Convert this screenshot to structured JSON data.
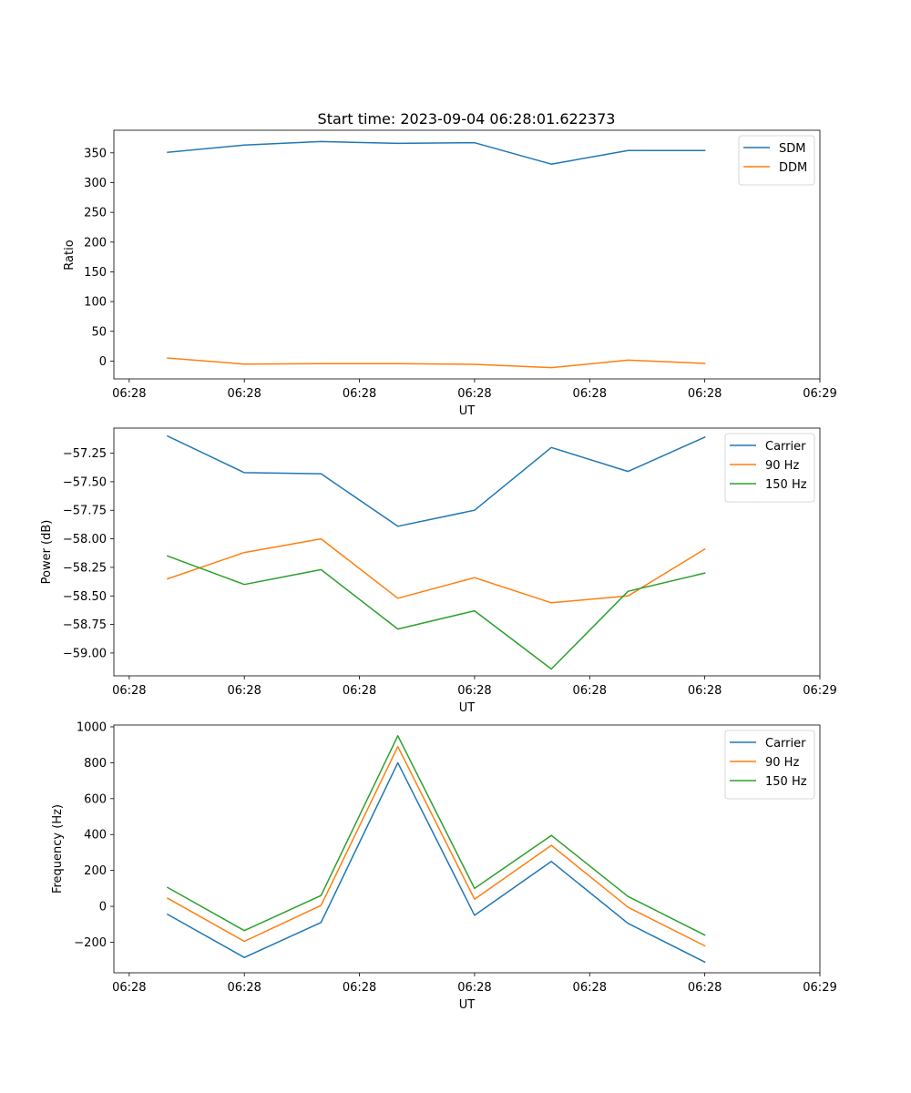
{
  "figure_title": "Start time: 2023-09-04 06:28:01.622373",
  "colors": {
    "blue": "#1f77b4",
    "orange": "#ff7f0e",
    "green": "#2ca02c"
  },
  "chart_data": [
    {
      "type": "line",
      "title": "Start time: 2023-09-04 06:28:01.622373",
      "xlabel": "UT",
      "ylabel": "Ratio",
      "x_tick_labels": [
        "06:28",
        "06:28",
        "06:28",
        "06:28",
        "06:28",
        "06:28",
        "06:29"
      ],
      "x": [
        1,
        2,
        3,
        4,
        5,
        6,
        7,
        8
      ],
      "xlim": [
        0.3,
        9.5
      ],
      "x_ticks": [
        0.5,
        2,
        3.5,
        5,
        6.5,
        8,
        9.5
      ],
      "ylim": [
        -30,
        388
      ],
      "y_ticks": [
        0,
        50,
        100,
        150,
        200,
        250,
        300,
        350
      ],
      "y_tick_labels": [
        "0",
        "50",
        "100",
        "150",
        "200",
        "250",
        "300",
        "350"
      ],
      "legend": "top-right",
      "series": [
        {
          "name": "SDM",
          "color": "#1f77b4",
          "values": [
            351,
            363,
            369,
            366,
            367,
            331,
            354,
            354
          ]
        },
        {
          "name": "DDM",
          "color": "#ff7f0e",
          "values": [
            5,
            -5,
            -4.5,
            -4.5,
            -5.5,
            -11,
            1.5,
            -4
          ]
        }
      ]
    },
    {
      "type": "line",
      "xlabel": "UT",
      "ylabel": "Power (dB)",
      "x_tick_labels": [
        "06:28",
        "06:28",
        "06:28",
        "06:28",
        "06:28",
        "06:28",
        "06:29"
      ],
      "x": [
        1,
        2,
        3,
        4,
        5,
        6,
        7,
        8
      ],
      "xlim": [
        0.3,
        9.5
      ],
      "x_ticks": [
        0.5,
        2,
        3.5,
        5,
        6.5,
        8,
        9.5
      ],
      "ylim": [
        -59.2,
        -57.03
      ],
      "y_ticks": [
        -59.0,
        -58.75,
        -58.5,
        -58.25,
        -58.0,
        -57.75,
        -57.5,
        -57.25
      ],
      "y_tick_labels": [
        "−59.00",
        "−58.75",
        "−58.50",
        "−58.25",
        "−58.00",
        "−57.75",
        "−57.50",
        "−57.25"
      ],
      "legend": "top-right",
      "series": [
        {
          "name": "Carrier",
          "color": "#1f77b4",
          "values": [
            -57.1,
            -57.42,
            -57.43,
            -57.89,
            -57.75,
            -57.2,
            -57.41,
            -57.11
          ]
        },
        {
          "name": "90 Hz",
          "color": "#ff7f0e",
          "values": [
            -58.35,
            -58.12,
            -58.0,
            -58.52,
            -58.34,
            -58.56,
            -58.5,
            -58.09
          ]
        },
        {
          "name": "150 Hz",
          "color": "#2ca02c",
          "values": [
            -58.15,
            -58.4,
            -58.27,
            -58.79,
            -58.63,
            -59.14,
            -58.46,
            -58.3
          ]
        }
      ]
    },
    {
      "type": "line",
      "xlabel": "UT",
      "ylabel": "Frequency (Hz)",
      "x_tick_labels": [
        "06:28",
        "06:28",
        "06:28",
        "06:28",
        "06:28",
        "06:28",
        "06:29"
      ],
      "x": [
        1,
        2,
        3,
        4,
        5,
        6,
        7,
        8
      ],
      "xlim": [
        0.3,
        9.5
      ],
      "x_ticks": [
        0.5,
        2,
        3.5,
        5,
        6.5,
        8,
        9.5
      ],
      "ylim": [
        -370,
        1010
      ],
      "y_ticks": [
        -200,
        0,
        200,
        400,
        600,
        800,
        1000
      ],
      "y_tick_labels": [
        "−200",
        "0",
        "200",
        "400",
        "600",
        "800",
        "1000"
      ],
      "legend": "top-right",
      "series": [
        {
          "name": "Carrier",
          "color": "#1f77b4",
          "values": [
            -45,
            -285,
            -90,
            800,
            -50,
            250,
            -95,
            -310
          ]
        },
        {
          "name": "90 Hz",
          "color": "#ff7f0e",
          "values": [
            45,
            -195,
            5,
            890,
            40,
            340,
            -5,
            -220
          ]
        },
        {
          "name": "150 Hz",
          "color": "#2ca02c",
          "values": [
            105,
            -135,
            60,
            950,
            100,
            395,
            55,
            -160
          ]
        }
      ]
    }
  ]
}
